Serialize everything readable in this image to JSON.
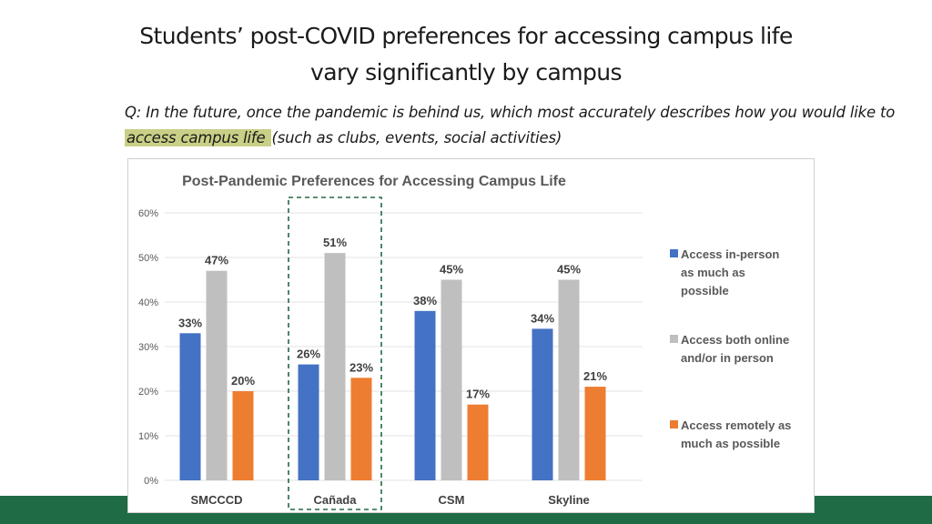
{
  "slide": {
    "title_line1": "Students’ post-COVID preferences for accessing campus life",
    "title_line2": "vary significantly by campus",
    "question_before": "Q: In the future, once the pandemic is behind us, which most accurately describes how you would like to ",
    "question_highlight": "access campus life ",
    "question_after": "(such as clubs, events, social activities)"
  },
  "chart_data": {
    "type": "bar",
    "title": "Post-Pandemic Preferences for Accessing Campus Life",
    "categories": [
      "SMCCCD",
      "Cañada",
      "CSM",
      "Skyline"
    ],
    "series": [
      {
        "name": "Access in-person as much as possible",
        "color": "#4472c4",
        "values": [
          33,
          26,
          38,
          34
        ]
      },
      {
        "name": "Access both online and/or in person",
        "color": "#bfbfbf",
        "values": [
          47,
          51,
          45,
          45
        ]
      },
      {
        "name": "Access remotely as much as possible",
        "color": "#ed7d31",
        "values": [
          20,
          23,
          17,
          21
        ]
      }
    ],
    "ylim": [
      0,
      60
    ],
    "yticks": [
      "0%",
      "10%",
      "20%",
      "30%",
      "40%",
      "50%",
      "60%"
    ],
    "value_suffix": "%",
    "highlighted_category": "Cañada",
    "grid": true,
    "legend_position": "right"
  }
}
